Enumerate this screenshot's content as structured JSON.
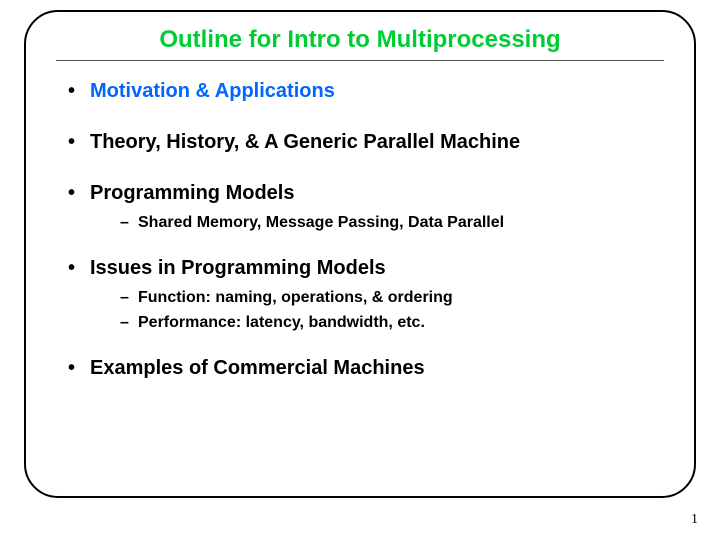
{
  "title": "Outline for Intro to Multiprocessing",
  "title_color": "#00cc33",
  "highlight_color": "#0066ff",
  "text_color": "#000000",
  "border_color": "#000000",
  "border_radius": 34,
  "divider_color": "#555555",
  "title_fontsize": 24,
  "bullet_fontsize": 20,
  "sub_fontsize": 16,
  "items": [
    {
      "label": "Motivation & Applications",
      "highlight": true
    },
    {
      "label": "Theory, History, & A Generic Parallel Machine"
    },
    {
      "label": "Programming Models",
      "sub": [
        "Shared Memory, Message Passing, Data Parallel"
      ]
    },
    {
      "label": "Issues in Programming Models",
      "sub": [
        "Function: naming, operations, & ordering",
        "Performance: latency, bandwidth, etc."
      ]
    },
    {
      "label": "Examples of Commercial Machines"
    }
  ],
  "page_number": "1"
}
